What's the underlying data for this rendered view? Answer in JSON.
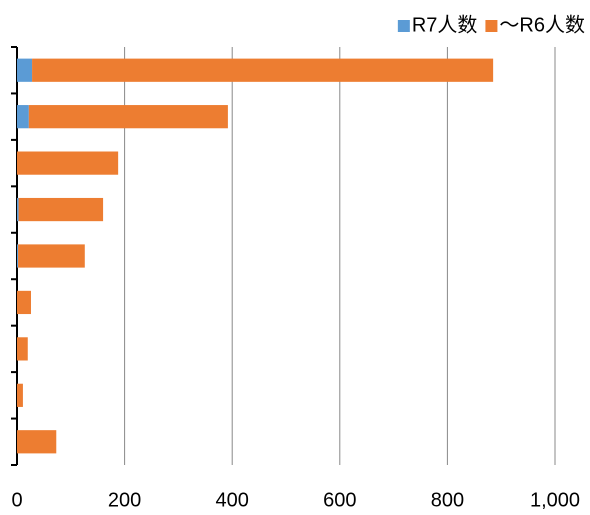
{
  "chart_data": {
    "type": "stacked-barh",
    "categories": [
      null,
      null,
      null,
      null,
      null,
      null,
      null,
      null,
      null
    ],
    "series": [
      {
        "name": "R7人数",
        "color": "#5b9bd5",
        "values": [
          28,
          22,
          0,
          3,
          2,
          0,
          0,
          0,
          0
        ]
      },
      {
        "name": "～R6人数",
        "color": "#ed7d31",
        "values": [
          857,
          370,
          188,
          157,
          124,
          26,
          20,
          11,
          73
        ]
      }
    ],
    "xlim": [
      0,
      1000
    ],
    "xticks": [
      0,
      200,
      400,
      600,
      800,
      {
        "value": 1000,
        "label": "1,000"
      }
    ],
    "grid": true,
    "legend": "top-right"
  }
}
